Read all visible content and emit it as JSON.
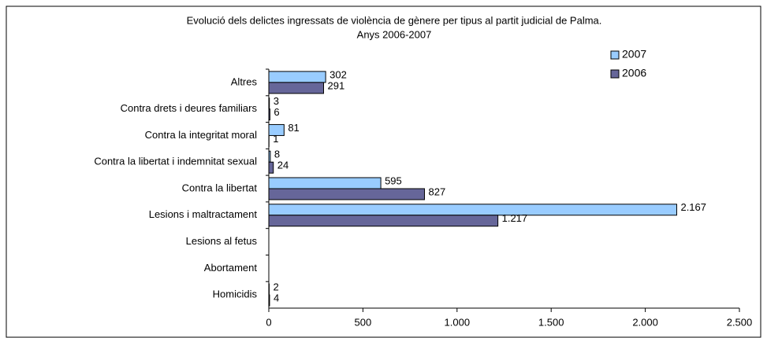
{
  "chart_data": {
    "type": "hbar",
    "title": "Evolució dels delictes ingressats de violència de gènere per tipus al partit judicial de Palma.",
    "subtitle": "Anys 2006-2007",
    "categories": [
      "Altres",
      "Contra drets i deures familiars",
      "Contra la integritat moral",
      "Contra la libertat i indemnitat sexual",
      "Contra la libertat",
      "Lesions i maltractament",
      "Lesions al fetus",
      "Abortament",
      "Homicidis"
    ],
    "series": [
      {
        "name": "2007",
        "color": "#99ccff",
        "values": [
          302,
          3,
          81,
          8,
          595,
          2167,
          null,
          null,
          2
        ],
        "value_labels": [
          "302",
          "3",
          "81",
          "8",
          "595",
          "2.167",
          null,
          null,
          "2"
        ]
      },
      {
        "name": "2006",
        "color": "#666699",
        "values": [
          291,
          6,
          1,
          24,
          827,
          1217,
          null,
          null,
          4
        ],
        "value_labels": [
          "291",
          "6",
          "1",
          "24",
          "827",
          "1.217",
          null,
          null,
          "4"
        ]
      }
    ],
    "xlim": [
      0,
      2500
    ],
    "xticks": [
      0,
      500,
      {
        "value": 1000,
        "label": "1.000"
      },
      {
        "value": 1500,
        "label": "1.500"
      },
      {
        "value": 2000,
        "label": "2.000"
      },
      {
        "value": 2500,
        "label": "2.500"
      }
    ],
    "legend": "top-right"
  }
}
